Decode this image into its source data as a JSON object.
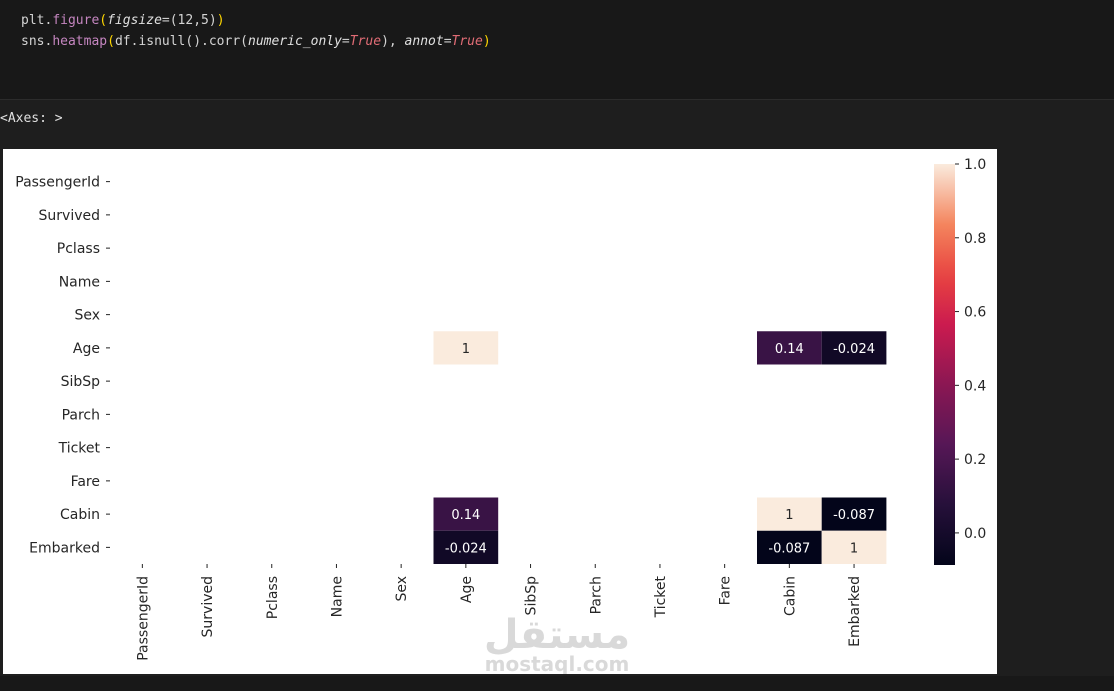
{
  "code": {
    "line1": {
      "obj": "plt",
      "fn": "figure",
      "arg": "figsize",
      "value": "(12,5)"
    },
    "line2": {
      "obj": "sns",
      "fn": "heatmap",
      "inner": "df.isnull().corr(",
      "arg1": "numeric_only",
      "val1": "True",
      "sep": "), ",
      "arg2": "annot",
      "val2": "True",
      "close": ")"
    }
  },
  "output_label": "<Axes: >",
  "watermark": {
    "arabic": "مستقل",
    "latin": "mostaql.com"
  },
  "chart_data": {
    "type": "heatmap",
    "rows": [
      "PassengerId",
      "Survived",
      "Pclass",
      "Name",
      "Sex",
      "Age",
      "SibSp",
      "Parch",
      "Ticket",
      "Fare",
      "Cabin",
      "Embarked"
    ],
    "columns": [
      "PassengerId",
      "Survived",
      "Pclass",
      "Name",
      "Sex",
      "Age",
      "SibSp",
      "Parch",
      "Ticket",
      "Fare",
      "Cabin",
      "Embarked"
    ],
    "cells": [
      {
        "row": "Age",
        "col": "Age",
        "value": 1,
        "label": "1"
      },
      {
        "row": "Age",
        "col": "Cabin",
        "value": 0.14,
        "label": "0.14"
      },
      {
        "row": "Age",
        "col": "Embarked",
        "value": -0.024,
        "label": "-0.024"
      },
      {
        "row": "Cabin",
        "col": "Age",
        "value": 0.14,
        "label": "0.14"
      },
      {
        "row": "Cabin",
        "col": "Cabin",
        "value": 1,
        "label": "1"
      },
      {
        "row": "Cabin",
        "col": "Embarked",
        "value": -0.087,
        "label": "-0.087"
      },
      {
        "row": "Embarked",
        "col": "Age",
        "value": -0.024,
        "label": "-0.024"
      },
      {
        "row": "Embarked",
        "col": "Cabin",
        "value": -0.087,
        "label": "-0.087"
      },
      {
        "row": "Embarked",
        "col": "Embarked",
        "value": 1,
        "label": "1"
      }
    ],
    "colorbar": {
      "min": -0.087,
      "max": 1.0,
      "ticks": [
        "1.0",
        "0.8",
        "0.6",
        "0.4",
        "0.2",
        "0.0"
      ],
      "tick_values": [
        1.0,
        0.8,
        0.6,
        0.4,
        0.2,
        0.0
      ]
    },
    "colormap": "rocket",
    "annotated": true
  }
}
